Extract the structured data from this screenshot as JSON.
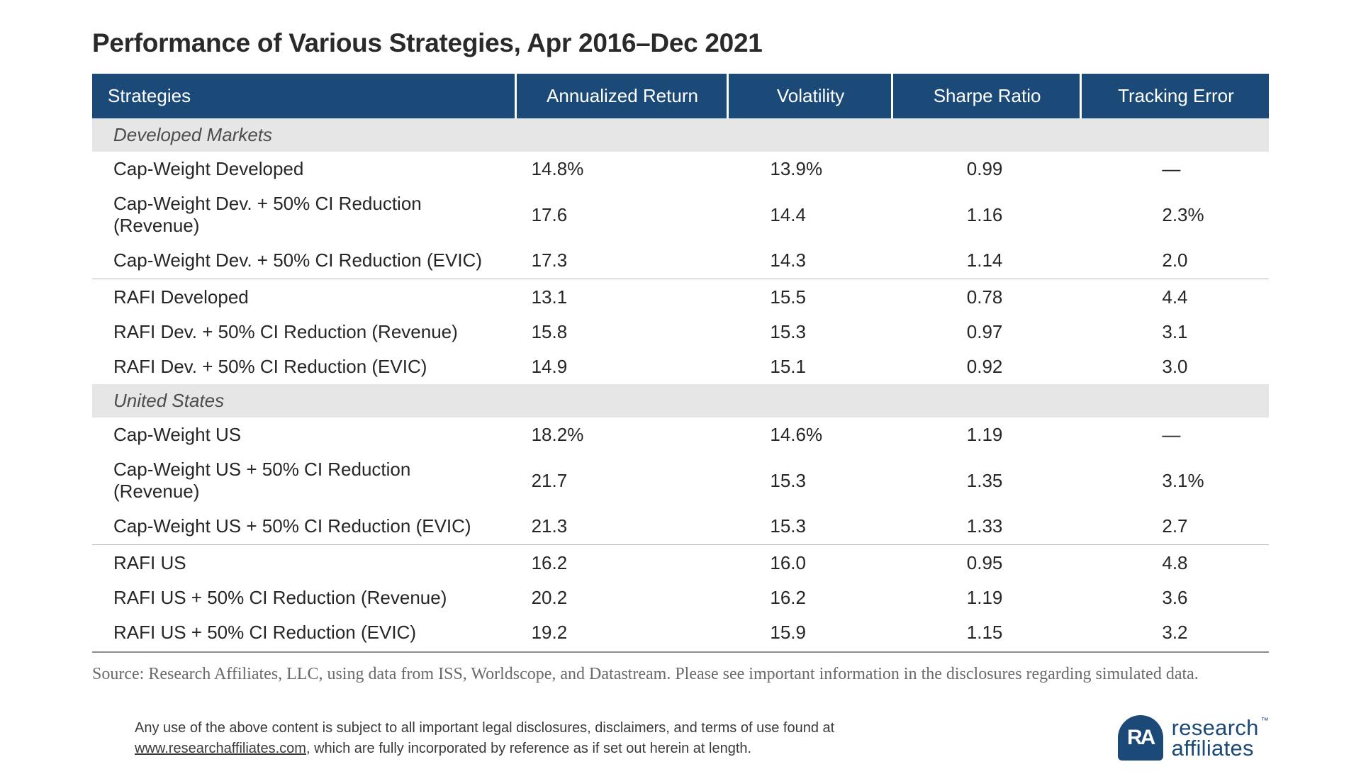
{
  "title": "Performance of Various Strategies, Apr 2016–Dec 2021",
  "table": {
    "type": "table",
    "header_bg": "#1c4a78",
    "header_fg": "#ffffff",
    "section_bg": "#e6e6e6",
    "section_fg": "#4d4d4d",
    "divider_color": "#b8b8b8",
    "end_divider_color": "#8c8c8c",
    "body_fontsize": 26,
    "columns": [
      {
        "key": "strategy",
        "label": "Strategies"
      },
      {
        "key": "ann_return",
        "label": "Annualized Return"
      },
      {
        "key": "vol",
        "label": "Volatility"
      },
      {
        "key": "sharpe",
        "label": "Sharpe Ratio"
      },
      {
        "key": "te",
        "label": "Tracking Error"
      }
    ],
    "sections": [
      {
        "label": "Developed Markets",
        "groups": [
          {
            "rows": [
              {
                "strategy": "Cap-Weight Developed",
                "ann_return": "14.8%",
                "vol": "13.9%",
                "sharpe": "0.99",
                "te": "—"
              },
              {
                "strategy": "Cap-Weight Dev. + 50% CI Reduction (Revenue)",
                "ann_return": "17.6",
                "vol": "14.4",
                "sharpe": "1.16",
                "te": "2.3%"
              },
              {
                "strategy": "Cap-Weight Dev. + 50% CI  Reduction (EVIC)",
                "ann_return": "17.3",
                "vol": "14.3",
                "sharpe": "1.14",
                "te": "2.0"
              }
            ]
          },
          {
            "rows": [
              {
                "strategy": "RAFI Developed",
                "ann_return": "13.1",
                "vol": "15.5",
                "sharpe": "0.78",
                "te": "4.4"
              },
              {
                "strategy": "RAFI Dev. + 50% CI Reduction (Revenue)",
                "ann_return": "15.8",
                "vol": "15.3",
                "sharpe": "0.97",
                "te": "3.1"
              },
              {
                "strategy": "RAFI Dev. + 50% CI Reduction (EVIC)",
                "ann_return": "14.9",
                "vol": "15.1",
                "sharpe": "0.92",
                "te": "3.0"
              }
            ]
          }
        ]
      },
      {
        "label": "United States",
        "groups": [
          {
            "rows": [
              {
                "strategy": "Cap-Weight US",
                "ann_return": "18.2%",
                "vol": "14.6%",
                "sharpe": "1.19",
                "te": "—"
              },
              {
                "strategy": "Cap-Weight US + 50% CI Reduction (Revenue)",
                "ann_return": "21.7",
                "vol": "15.3",
                "sharpe": "1.35",
                "te": "3.1%"
              },
              {
                "strategy": "Cap-Weight US + 50% CI  Reduction (EVIC)",
                "ann_return": "21.3",
                "vol": "15.3",
                "sharpe": "1.33",
                "te": "2.7"
              }
            ]
          },
          {
            "rows": [
              {
                "strategy": "RAFI US",
                "ann_return": "16.2",
                "vol": "16.0",
                "sharpe": "0.95",
                "te": "4.8"
              },
              {
                "strategy": "RAFI US + 50% CI Reduction (Revenue)",
                "ann_return": "20.2",
                "vol": "16.2",
                "sharpe": "1.19",
                "te": "3.6"
              },
              {
                "strategy": "RAFI US + 50% CI Reduction (EVIC)",
                "ann_return": "19.2",
                "vol": "15.9",
                "sharpe": "1.15",
                "te": "3.2"
              }
            ]
          }
        ]
      }
    ]
  },
  "source_note": "Source: Research Affiliates, LLC, using data from ISS, Worldscope, and Datastream. Please see important information in the disclosures regarding simulated data.",
  "legal_prefix": "Any use of the above content is subject to all important legal disclosures, disclaimers, and terms of use found at ",
  "legal_link_text": "www.researchaffiliates.com",
  "legal_suffix": ", which are fully incorporated by reference as if set out herein at length.",
  "brand": {
    "line1": "research",
    "line2": "affiliates",
    "tm": "™",
    "color": "#1c4a78"
  }
}
